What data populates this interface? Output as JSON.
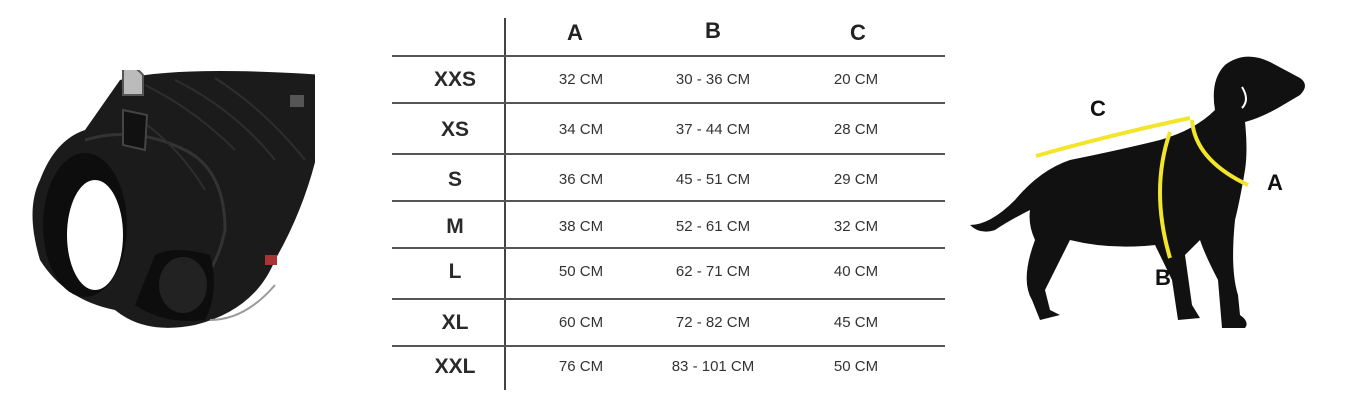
{
  "table": {
    "columns": [
      "A",
      "B",
      "C"
    ],
    "rows": [
      {
        "size": "XXS",
        "a": "32 CM",
        "b": "30 - 36 CM",
        "c": "20 CM"
      },
      {
        "size": "XS",
        "a": "34 CM",
        "b": "37 - 44 CM",
        "c": "28 CM"
      },
      {
        "size": "S",
        "a": "36 CM",
        "b": "45 - 51 CM",
        "c": "29 CM"
      },
      {
        "size": "M",
        "a": "38 CM",
        "b": "52 - 61 CM",
        "c": "32 CM"
      },
      {
        "size": "L",
        "a": "50 CM",
        "b": "62 - 71 CM",
        "c": "40 CM"
      },
      {
        "size": "XL",
        "a": "60 CM",
        "b": "72 - 82 CM",
        "c": "45 CM"
      },
      {
        "size": "XXL",
        "a": "76 CM",
        "b": "83 - 101 CM",
        "c": "50 CM"
      }
    ]
  },
  "diagram": {
    "labels": {
      "a": "A",
      "b": "B",
      "c": "C"
    },
    "measure_color": "#f2e52a",
    "dog_color": "#111111"
  },
  "product": {
    "image": "black-quilted-dog-vest"
  }
}
